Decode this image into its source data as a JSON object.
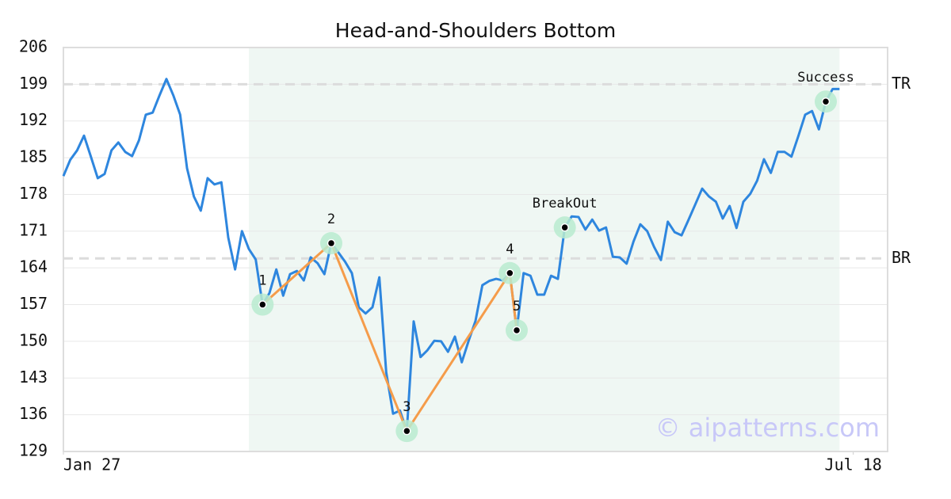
{
  "chart_data": {
    "type": "line",
    "title": "Head-and-Shoulders Bottom",
    "x": [
      0,
      1,
      2,
      3,
      4,
      5,
      6,
      7,
      8,
      9,
      10,
      11,
      12,
      13,
      14,
      15,
      16,
      17,
      18,
      19,
      20,
      21,
      22,
      23,
      24,
      25,
      26,
      27,
      28,
      29,
      30,
      31,
      32,
      33,
      34,
      35,
      36,
      37,
      38,
      39,
      40,
      41,
      42,
      43,
      44,
      45,
      46,
      47,
      48,
      49,
      50,
      51,
      52,
      53,
      54,
      55,
      56,
      57,
      58,
      59,
      60,
      61,
      62,
      63,
      64,
      65,
      66,
      67,
      68,
      69,
      70,
      71,
      72,
      73,
      74,
      75,
      76,
      77,
      78,
      79,
      80,
      81,
      82,
      83,
      84,
      85,
      86,
      87,
      88,
      89,
      90,
      91,
      92,
      93,
      94,
      95,
      96,
      97,
      98,
      99,
      100,
      101,
      102,
      103,
      104,
      105,
      106,
      107,
      108,
      109,
      110,
      111,
      112,
      113
    ],
    "values": [
      181.5,
      184.6,
      186.4,
      189.2,
      185.2,
      181.1,
      181.9,
      186.4,
      187.9,
      186.1,
      185.3,
      188.3,
      193.2,
      193.6,
      196.9,
      200,
      196.9,
      193.2,
      183.0,
      177.6,
      174.9,
      181.1,
      179.9,
      180.3,
      169.8,
      163.7,
      171,
      167.6,
      165.6,
      157,
      159.2,
      163.7,
      158.7,
      162.8,
      163.4,
      161.6,
      166,
      164.9,
      162.8,
      168.7,
      167,
      165.2,
      163,
      156.5,
      155.3,
      156.5,
      162.2,
      144.1,
      136.2,
      136.8,
      132.9,
      153.8,
      147,
      148.3,
      150.1,
      150,
      148,
      150.9,
      146,
      150.1,
      153.9,
      160.7,
      161.5,
      161.9,
      161.6,
      163,
      152.1,
      163,
      162.5,
      158.9,
      158.9,
      162.5,
      161.9,
      171.7,
      173.8,
      173.7,
      171.3,
      173.2,
      171.1,
      171.7,
      166.1,
      166,
      164.8,
      169,
      172.3,
      171,
      168,
      165.5,
      172.8,
      170.8,
      170.2,
      173.1,
      176.1,
      179.1,
      177.6,
      176.6,
      173.4,
      175.8,
      171.6,
      176.6,
      178.1,
      180.6,
      184.7,
      182.1,
      186.1,
      186.1,
      185.2,
      189.1,
      193.2,
      193.9,
      190.4,
      195.7,
      198.1,
      198.1
    ],
    "color": "#2e86de",
    "xlim": [
      0,
      120
    ],
    "xticks": [
      {
        "value": 0,
        "label": "Jan 27"
      },
      {
        "value": 115,
        "label": "Jul 18"
      }
    ],
    "ylim": [
      129,
      206
    ],
    "yticks": [
      129,
      136,
      143,
      150,
      157,
      164,
      171,
      178,
      185,
      192,
      199,
      206
    ],
    "grid": true,
    "highlight_range": [
      27,
      113
    ],
    "pattern": {
      "color": "#f59c4a",
      "labels": [
        "1",
        "2",
        "3",
        "4",
        "5"
      ],
      "x": [
        29,
        39,
        50,
        65,
        66
      ],
      "values": [
        157,
        168.7,
        132.9,
        163,
        152.1
      ]
    },
    "levels": [
      {
        "label": "TR",
        "value": 199
      },
      {
        "label": "BR",
        "value": 165.8
      }
    ],
    "annotations": [
      {
        "label": "BreakOut",
        "x": 73,
        "value": 171.7
      },
      {
        "label": "Success",
        "x": 111,
        "value": 195.7
      }
    ],
    "watermark": "© aipatterns.com"
  }
}
